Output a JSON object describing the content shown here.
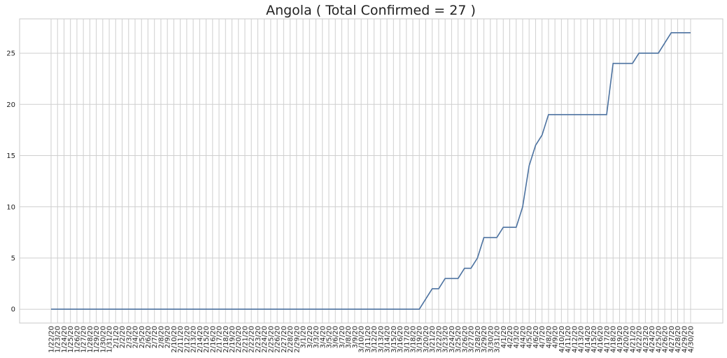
{
  "chart_data": {
    "type": "line",
    "title": "Angola ( Total Confirmed = 27 )",
    "categories": [
      "1/22/20",
      "1/23/20",
      "1/24/20",
      "1/25/20",
      "1/26/20",
      "1/27/20",
      "1/28/20",
      "1/29/20",
      "1/30/20",
      "1/31/20",
      "2/1/20",
      "2/2/20",
      "2/3/20",
      "2/4/20",
      "2/5/20",
      "2/6/20",
      "2/7/20",
      "2/8/20",
      "2/9/20",
      "2/10/20",
      "2/11/20",
      "2/12/20",
      "2/13/20",
      "2/14/20",
      "2/15/20",
      "2/16/20",
      "2/17/20",
      "2/18/20",
      "2/19/20",
      "2/20/20",
      "2/21/20",
      "2/22/20",
      "2/23/20",
      "2/24/20",
      "2/25/20",
      "2/26/20",
      "2/27/20",
      "2/28/20",
      "2/29/20",
      "3/1/20",
      "3/2/20",
      "3/3/20",
      "3/4/20",
      "3/5/20",
      "3/6/20",
      "3/7/20",
      "3/8/20",
      "3/9/20",
      "3/10/20",
      "3/11/20",
      "3/12/20",
      "3/13/20",
      "3/14/20",
      "3/15/20",
      "3/16/20",
      "3/17/20",
      "3/18/20",
      "3/19/20",
      "3/20/20",
      "3/21/20",
      "3/22/20",
      "3/23/20",
      "3/24/20",
      "3/25/20",
      "3/26/20",
      "3/27/20",
      "3/28/20",
      "3/29/20",
      "3/30/20",
      "3/31/20",
      "4/1/20",
      "4/2/20",
      "4/3/20",
      "4/4/20",
      "4/5/20",
      "4/6/20",
      "4/7/20",
      "4/8/20",
      "4/9/20",
      "4/10/20",
      "4/11/20",
      "4/12/20",
      "4/13/20",
      "4/14/20",
      "4/15/20",
      "4/16/20",
      "4/17/20",
      "4/18/20",
      "4/19/20",
      "4/20/20",
      "4/21/20",
      "4/22/20",
      "4/23/20",
      "4/24/20",
      "4/25/20",
      "4/26/20",
      "4/27/20",
      "4/28/20",
      "4/29/20",
      "4/30/20"
    ],
    "values": [
      0,
      0,
      0,
      0,
      0,
      0,
      0,
      0,
      0,
      0,
      0,
      0,
      0,
      0,
      0,
      0,
      0,
      0,
      0,
      0,
      0,
      0,
      0,
      0,
      0,
      0,
      0,
      0,
      0,
      0,
      0,
      0,
      0,
      0,
      0,
      0,
      0,
      0,
      0,
      0,
      0,
      0,
      0,
      0,
      0,
      0,
      0,
      0,
      0,
      0,
      0,
      0,
      0,
      0,
      0,
      0,
      0,
      0,
      1,
      2,
      2,
      3,
      3,
      3,
      4,
      4,
      5,
      7,
      7,
      7,
      8,
      8,
      8,
      10,
      14,
      16,
      17,
      19,
      19,
      19,
      19,
      19,
      19,
      19,
      19,
      19,
      19,
      24,
      24,
      24,
      24,
      25,
      25,
      25,
      25,
      26,
      27,
      27,
      27,
      27
    ],
    "color": "#4c72a0",
    "ylim": [
      -1.35,
      28.35
    ],
    "yticks": [
      0,
      5,
      10,
      15,
      20,
      25
    ],
    "grid": true
  }
}
